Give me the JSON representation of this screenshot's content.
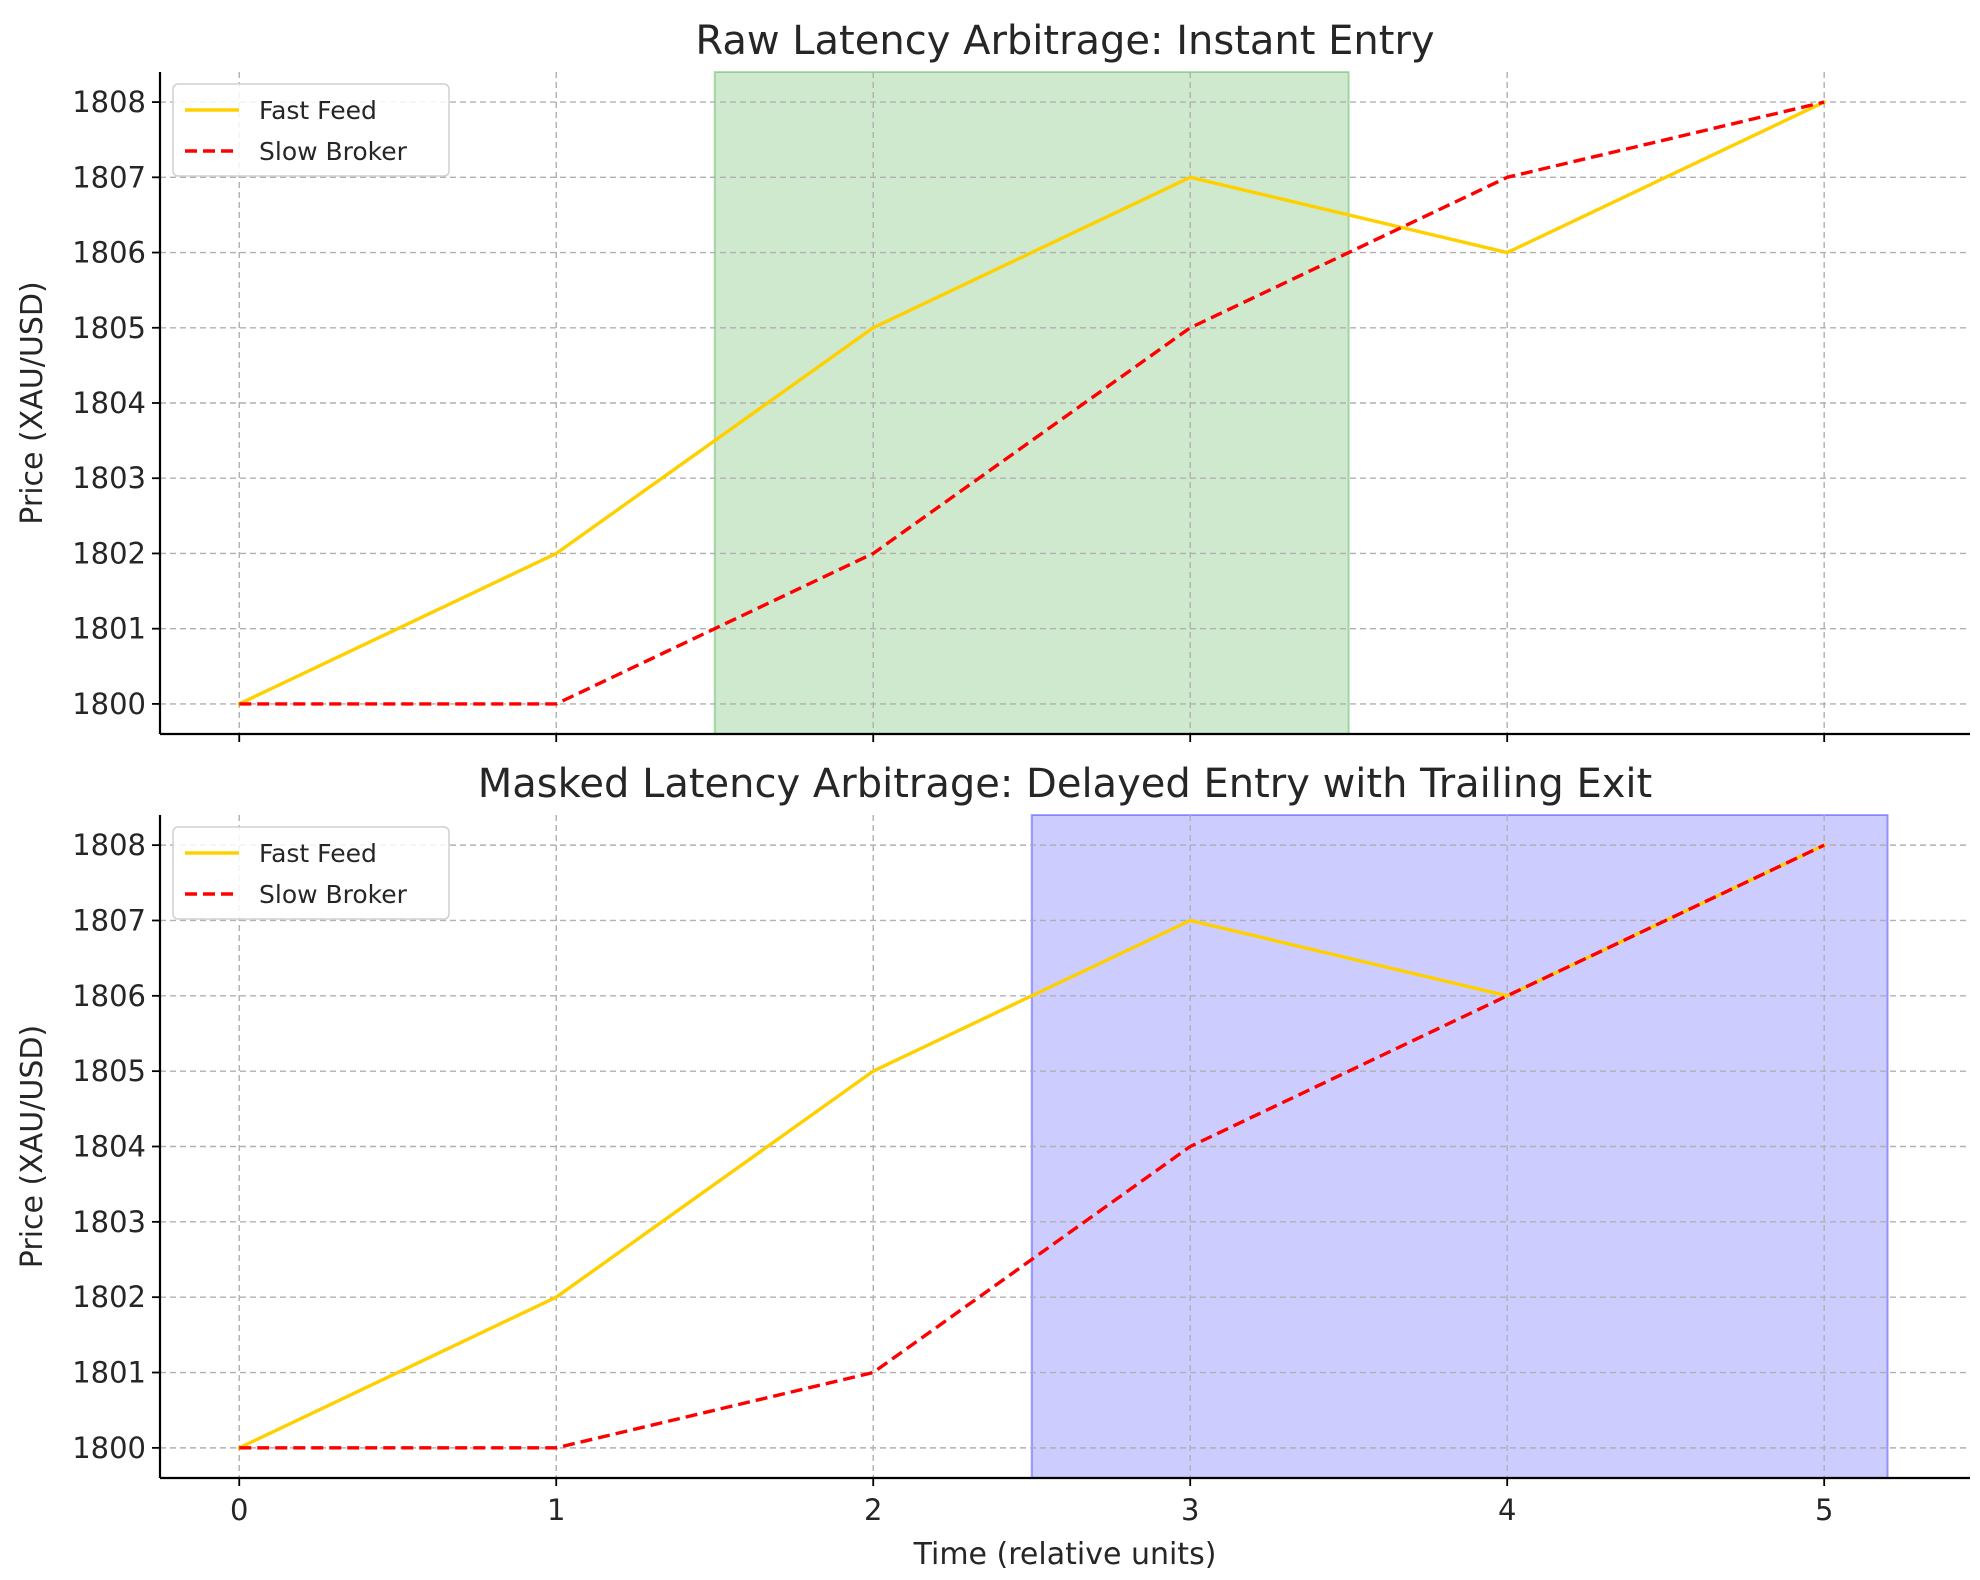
{
  "chart_data": [
    {
      "type": "line",
      "title": "Raw Latency Arbitrage: Instant Entry",
      "xlabel": "",
      "ylabel": "Price (XAU/USD)",
      "x": [
        0,
        1,
        2,
        3,
        4,
        5
      ],
      "xlim": [
        -0.25,
        5.46
      ],
      "ylim": [
        1799.6,
        1808.4
      ],
      "yticks": [
        1800,
        1801,
        1802,
        1803,
        1804,
        1805,
        1806,
        1807,
        1808
      ],
      "xtick_labels_shown": false,
      "grid": true,
      "legend_position": "upper left",
      "series": [
        {
          "name": "Fast Feed",
          "values": [
            1800,
            1802,
            1805,
            1807,
            1806,
            1808
          ],
          "color": "#FFD000",
          "style": "solid"
        },
        {
          "name": "Slow Broker",
          "values": [
            1800,
            1800,
            1802,
            1805,
            1807,
            1808
          ],
          "color": "#FF0000",
          "style": "dashed"
        }
      ],
      "shaded_region": {
        "x_start": 1.5,
        "x_end": 3.5,
        "color": "#2ca02c",
        "opacity": 0.23
      }
    },
    {
      "type": "line",
      "title": "Masked Latency Arbitrage: Delayed Entry with Trailing Exit",
      "xlabel": "Time (relative units)",
      "ylabel": "Price (XAU/USD)",
      "x": [
        0,
        1,
        2,
        3,
        4,
        5
      ],
      "xlim": [
        -0.25,
        5.46
      ],
      "ylim": [
        1799.6,
        1808.4
      ],
      "yticks": [
        1800,
        1801,
        1802,
        1803,
        1804,
        1805,
        1806,
        1807,
        1808
      ],
      "xticks": [
        0,
        1,
        2,
        3,
        4,
        5
      ],
      "xtick_labels_shown": true,
      "grid": true,
      "legend_position": "upper left",
      "series": [
        {
          "name": "Fast Feed",
          "values": [
            1800,
            1802,
            1805,
            1807,
            1806,
            1808
          ],
          "color": "#FFD000",
          "style": "solid"
        },
        {
          "name": "Slow Broker",
          "values": [
            1800,
            1800,
            1801,
            1804,
            1806,
            1808
          ],
          "color": "#FF0000",
          "style": "dashed"
        }
      ],
      "shaded_region": {
        "x_start": 2.5,
        "x_end": 5.2,
        "color": "#0000FF",
        "opacity": 0.2
      }
    }
  ]
}
